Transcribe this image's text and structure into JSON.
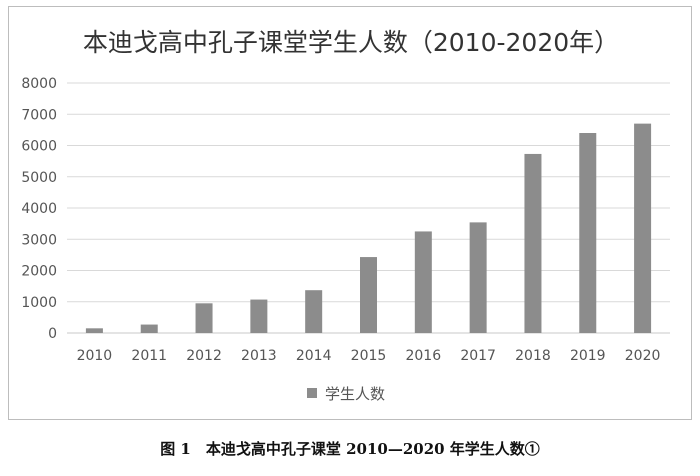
{
  "chart_data": {
    "type": "bar",
    "title": "本迪戈高中孔子课堂学生人数（2010-2020年）",
    "xlabel": "",
    "ylabel": "",
    "categories": [
      "2010",
      "2011",
      "2012",
      "2013",
      "2014",
      "2015",
      "2016",
      "2017",
      "2018",
      "2019",
      "2020"
    ],
    "series": [
      {
        "name": "学生人数",
        "values": [
          150,
          270,
          950,
          1070,
          1370,
          2430,
          3250,
          3540,
          5730,
          6400,
          6700
        ],
        "color": "#8c8c8c"
      }
    ],
    "ylim": [
      0,
      8000
    ],
    "yticks": [
      0,
      1000,
      2000,
      3000,
      4000,
      5000,
      6000,
      7000,
      8000
    ],
    "grid": true,
    "legend_position": "bottom"
  },
  "caption": "图 1　本迪戈高中孔子课堂 2010—2020 年学生人数①"
}
